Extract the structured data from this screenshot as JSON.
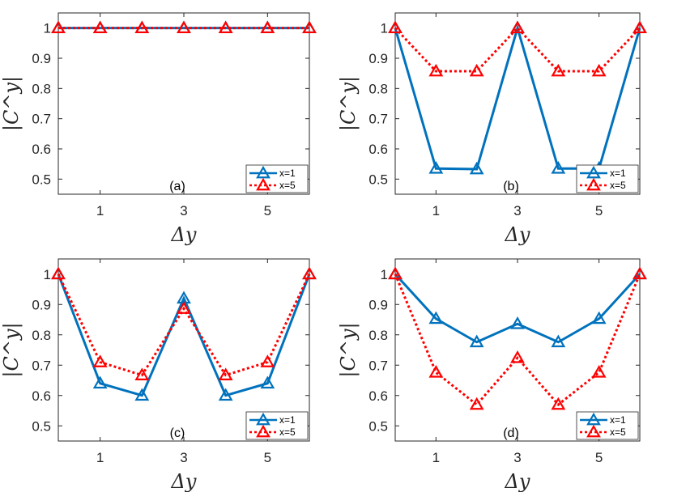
{
  "colors": {
    "series1": "#0072BD",
    "series2": "#FF0000",
    "axis": "#262626",
    "background": "#ffffff"
  },
  "chart_data": [
    {
      "type": "line",
      "panel_label": "(a)",
      "xlabel": "Δy",
      "ylabel": "|C^y|",
      "x": [
        0,
        1,
        2,
        3,
        4,
        5,
        6
      ],
      "xlim": [
        0,
        6
      ],
      "ylim": [
        0.45,
        1.05
      ],
      "xticks": [
        1,
        3,
        5
      ],
      "yticks": [
        0.5,
        0.6,
        0.7,
        0.8,
        0.9,
        1
      ],
      "ytick_labels": [
        "0.5",
        "0.6",
        "0.7",
        "0.8",
        "0.9",
        "1"
      ],
      "legend": "bottom-right",
      "grid": false,
      "series": [
        {
          "name": "x=1",
          "values": [
            1,
            1,
            1,
            1,
            1,
            1,
            1
          ],
          "style": "solid",
          "marker": "triangle"
        },
        {
          "name": "x=5",
          "values": [
            1,
            1,
            1,
            1,
            1,
            1,
            1
          ],
          "style": "dotted",
          "marker": "triangle"
        }
      ]
    },
    {
      "type": "line",
      "panel_label": "(b)",
      "xlabel": "Δy",
      "ylabel": "|C^y|",
      "x": [
        0,
        1,
        2,
        3,
        4,
        5,
        6
      ],
      "xlim": [
        0,
        6
      ],
      "ylim": [
        0.45,
        1.05
      ],
      "xticks": [
        1,
        3,
        5
      ],
      "yticks": [
        0.5,
        0.6,
        0.7,
        0.8,
        0.9,
        1
      ],
      "ytick_labels": [
        "0.5",
        "0.6",
        "0.7",
        "0.8",
        "0.9",
        "1"
      ],
      "legend": "bottom-right",
      "grid": false,
      "series": [
        {
          "name": "x=1",
          "values": [
            1,
            0.535,
            0.533,
            1,
            0.535,
            0.535,
            1
          ],
          "style": "solid",
          "marker": "triangle"
        },
        {
          "name": "x=5",
          "values": [
            1,
            0.857,
            0.857,
            1,
            0.857,
            0.857,
            1
          ],
          "style": "dotted",
          "marker": "triangle"
        }
      ]
    },
    {
      "type": "line",
      "panel_label": "(c)",
      "xlabel": "Δy",
      "ylabel": "|C^y|",
      "x": [
        0,
        1,
        2,
        3,
        4,
        5,
        6
      ],
      "xlim": [
        0,
        6
      ],
      "ylim": [
        0.45,
        1.05
      ],
      "xticks": [
        1,
        3,
        5
      ],
      "yticks": [
        0.5,
        0.6,
        0.7,
        0.8,
        0.9,
        1
      ],
      "ytick_labels": [
        "0.5",
        "0.6",
        "0.7",
        "0.8",
        "0.9",
        "1"
      ],
      "legend": "bottom-right",
      "grid": false,
      "series": [
        {
          "name": "x=1",
          "values": [
            1,
            0.64,
            0.6,
            0.92,
            0.6,
            0.64,
            1
          ],
          "style": "solid",
          "marker": "triangle"
        },
        {
          "name": "x=5",
          "values": [
            1,
            0.71,
            0.667,
            0.886,
            0.667,
            0.71,
            1
          ],
          "style": "dotted",
          "marker": "triangle"
        }
      ]
    },
    {
      "type": "line",
      "panel_label": "(d)",
      "xlabel": "Δy",
      "ylabel": "|C^y|",
      "x": [
        0,
        1,
        2,
        3,
        4,
        5,
        6
      ],
      "xlim": [
        0,
        6
      ],
      "ylim": [
        0.45,
        1.05
      ],
      "xticks": [
        1,
        3,
        5
      ],
      "yticks": [
        0.5,
        0.6,
        0.7,
        0.8,
        0.9,
        1
      ],
      "ytick_labels": [
        "0.5",
        "0.6",
        "0.7",
        "0.8",
        "0.9",
        "1"
      ],
      "legend": "bottom-right",
      "grid": false,
      "series": [
        {
          "name": "x=1",
          "values": [
            1,
            0.853,
            0.776,
            0.836,
            0.776,
            0.853,
            1
          ],
          "style": "solid",
          "marker": "triangle"
        },
        {
          "name": "x=5",
          "values": [
            1,
            0.676,
            0.57,
            0.724,
            0.57,
            0.676,
            1
          ],
          "style": "dotted",
          "marker": "triangle"
        }
      ]
    }
  ]
}
